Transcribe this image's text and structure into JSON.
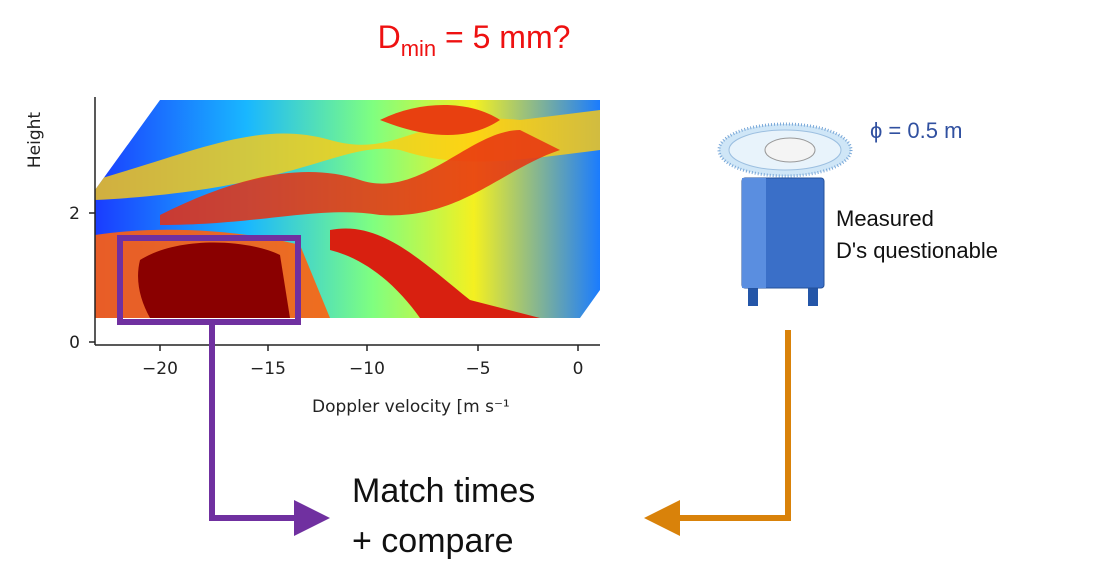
{
  "title": {
    "base": "D",
    "subscript": "min",
    "rest": " = 5 mm?"
  },
  "plot": {
    "y_label": "Height",
    "y_ticks": [
      "0",
      "2"
    ],
    "x_ticks": [
      "−20",
      "−15",
      "−10",
      "−5",
      "0"
    ],
    "x_label": "Doppler velocity [m s⁻¹"
  },
  "instrument": {
    "diameter": "ϕ = 0.5 m",
    "note_line_1": "Measured",
    "note_line_2": "D's questionable"
  },
  "result": {
    "line_1": "Match times",
    "line_2": "+ compare"
  }
}
